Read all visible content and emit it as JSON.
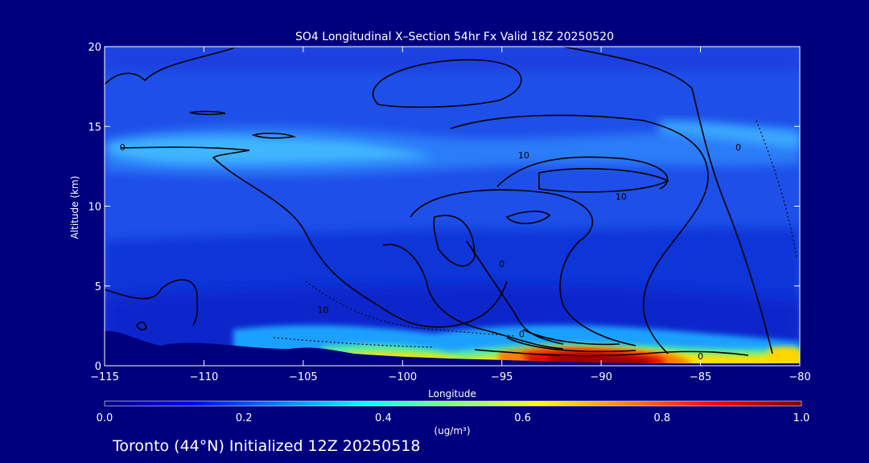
{
  "chart_data": {
    "type": "heatmap",
    "title": "SO4 Longitudinal X–Section 54hr  Fx Valid 18Z 20250520",
    "footer": "Toronto (44°N) Initialized 12Z 20250518",
    "xlabel": "Longitude",
    "ylabel": "Altitude (km)",
    "xlim": [
      -115,
      -80
    ],
    "ylim": [
      0,
      20
    ],
    "x_ticks": [
      -115,
      -110,
      -105,
      -100,
      -95,
      -90,
      -85,
      -80
    ],
    "x_tick_labels": [
      "−115",
      "−110",
      "−105",
      "−100",
      "−95",
      "−90",
      "−85",
      "−80"
    ],
    "y_ticks": [
      0,
      5,
      10,
      15,
      20
    ],
    "y_tick_labels": [
      "0",
      "5",
      "10",
      "15",
      "20"
    ],
    "colorbar": {
      "min": 0.0,
      "max": 1.0,
      "ticks": [
        0.0,
        0.2,
        0.4,
        0.6,
        0.8,
        1.0
      ],
      "tick_labels": [
        "0.0",
        "0.2",
        "0.4",
        "0.6",
        "0.8",
        "1.0"
      ],
      "units": "(ug/m³)",
      "colors": [
        "#000080",
        "#0000ff",
        "#0080ff",
        "#00ffff",
        "#80ff80",
        "#ffff00",
        "#ff8000",
        "#ff0000",
        "#800000"
      ]
    },
    "contour_labels": [
      {
        "text": "0",
        "lon": -114.1,
        "alt": 13.7
      },
      {
        "text": "10",
        "lon": -93.9,
        "alt": 13.2
      },
      {
        "text": "10",
        "lon": -89.0,
        "alt": 10.6
      },
      {
        "text": "0",
        "lon": -83.1,
        "alt": 13.7
      },
      {
        "text": "10",
        "lon": -104.0,
        "alt": 3.5
      },
      {
        "text": "0",
        "lon": -85.0,
        "alt": 0.6
      },
      {
        "text": "0",
        "lon": -94.0,
        "alt": 2.0
      },
      {
        "text": "0",
        "lon": -95.0,
        "alt": 6.4
      }
    ]
  }
}
